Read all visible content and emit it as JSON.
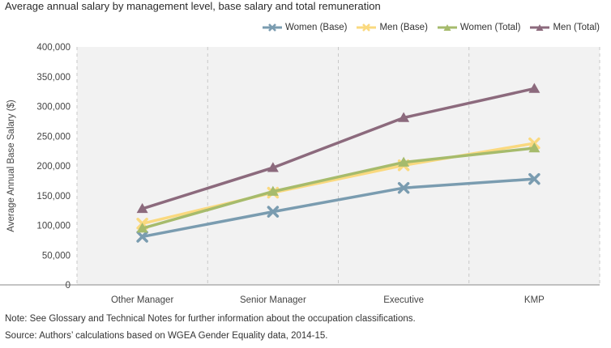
{
  "title": "Average annual salary by management level, base salary and total remuneration",
  "notes": {
    "note": "Note: See Glossary and Technical Notes for further information about the occupation classifications.",
    "source": "Source: Authors’ calculations based on WGEA Gender Equality data, 2014-15."
  },
  "chart_data": {
    "type": "line",
    "title": "Average annual salary by management level, base salary and total remuneration",
    "xlabel": "",
    "ylabel": "Average Annual Base Salary ($)",
    "categories": [
      "Other Manager",
      "Senior Manager",
      "Executive",
      "KMP"
    ],
    "ylim": [
      0,
      400000
    ],
    "yticks": [
      0,
      50000,
      100000,
      150000,
      200000,
      250000,
      300000,
      350000,
      400000
    ],
    "ytick_labels": [
      "0",
      "50,000",
      "100,000",
      "150,000",
      "200,000",
      "250,000",
      "300,000",
      "350,000",
      "400,000"
    ],
    "grid": "vertical dashed",
    "legend_position": "top-right",
    "series": [
      {
        "name": "Women (Base)",
        "color": "#7a9cb0",
        "marker": "x",
        "values": [
          81000,
          123000,
          163000,
          178000
        ]
      },
      {
        "name": "Men (Base)",
        "color": "#fad97f",
        "marker": "x",
        "values": [
          103000,
          155000,
          201000,
          238000
        ]
      },
      {
        "name": "Women (Total)",
        "color": "#a6bb6c",
        "marker": "triangle",
        "values": [
          95000,
          157000,
          206000,
          230000
        ]
      },
      {
        "name": "Men (Total)",
        "color": "#8c6a7d",
        "marker": "triangle",
        "values": [
          128000,
          197000,
          281000,
          330000
        ]
      }
    ]
  }
}
